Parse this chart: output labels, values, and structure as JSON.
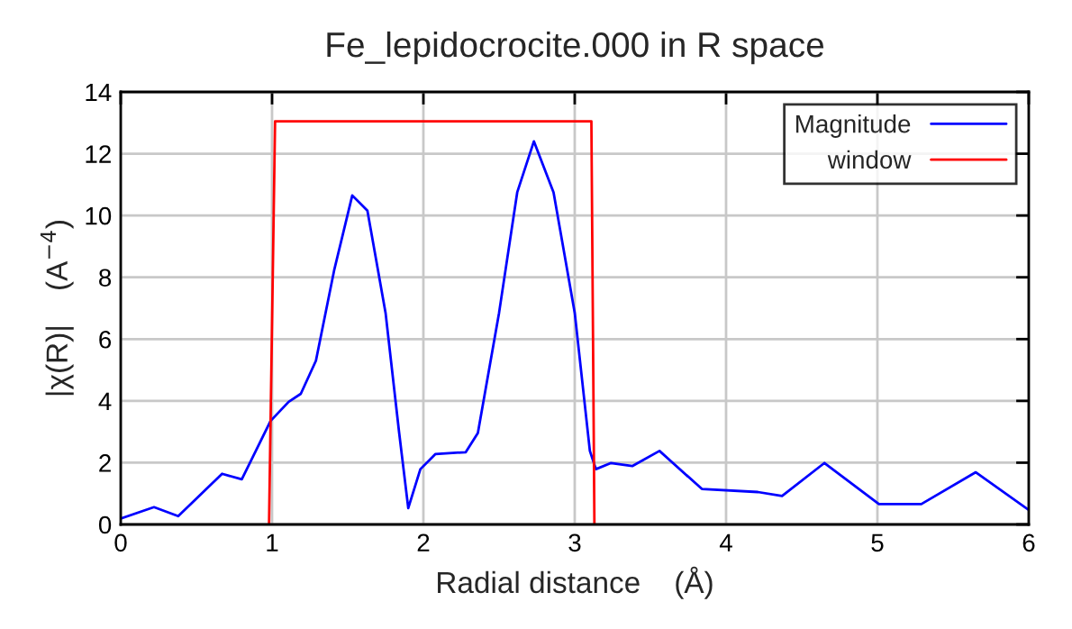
{
  "chart_data": {
    "type": "line",
    "title": "Fe_lepidocrocite.000 in R space",
    "xlabel": "Radial distance    (Å)",
    "ylabel": "|χ(R)|    (A$^{−4}$)",
    "xlim": [
      0,
      6
    ],
    "ylim": [
      0,
      14
    ],
    "xticks": [
      0,
      1,
      2,
      3,
      4,
      5,
      6
    ],
    "yticks": [
      0,
      2,
      4,
      6,
      8,
      10,
      12,
      14
    ],
    "grid": true,
    "legend": "top right",
    "series": [
      {
        "name": "Magnitude",
        "color": "#0000ff",
        "x": [
          0,
          0.22,
          0.38,
          0.67,
          0.8,
          0.99,
          1.11,
          1.19,
          1.29,
          1.41,
          1.53,
          1.63,
          1.75,
          1.84,
          1.9,
          1.98,
          2.08,
          2.28,
          2.36,
          2.5,
          2.62,
          2.73,
          2.86,
          3.0,
          3.1,
          3.14,
          3.24,
          3.38,
          3.56,
          3.84,
          4.21,
          4.37,
          4.65,
          5.01,
          5.29,
          5.65,
          6.0
        ],
        "values": [
          0.19,
          0.56,
          0.27,
          1.64,
          1.46,
          3.35,
          3.97,
          4.23,
          5.3,
          8.22,
          10.65,
          10.16,
          6.85,
          2.96,
          0.53,
          1.79,
          2.28,
          2.34,
          2.96,
          6.85,
          10.75,
          12.4,
          10.75,
          6.85,
          2.38,
          1.79,
          1.99,
          1.89,
          2.38,
          1.15,
          1.05,
          0.92,
          1.99,
          0.66,
          0.66,
          1.69,
          0.47
        ]
      },
      {
        "name": "window",
        "color": "#ff0000",
        "x": [
          0.98,
          1.02,
          3.11,
          3.13
        ],
        "values": [
          0,
          13.05,
          13.05,
          0
        ]
      }
    ]
  }
}
